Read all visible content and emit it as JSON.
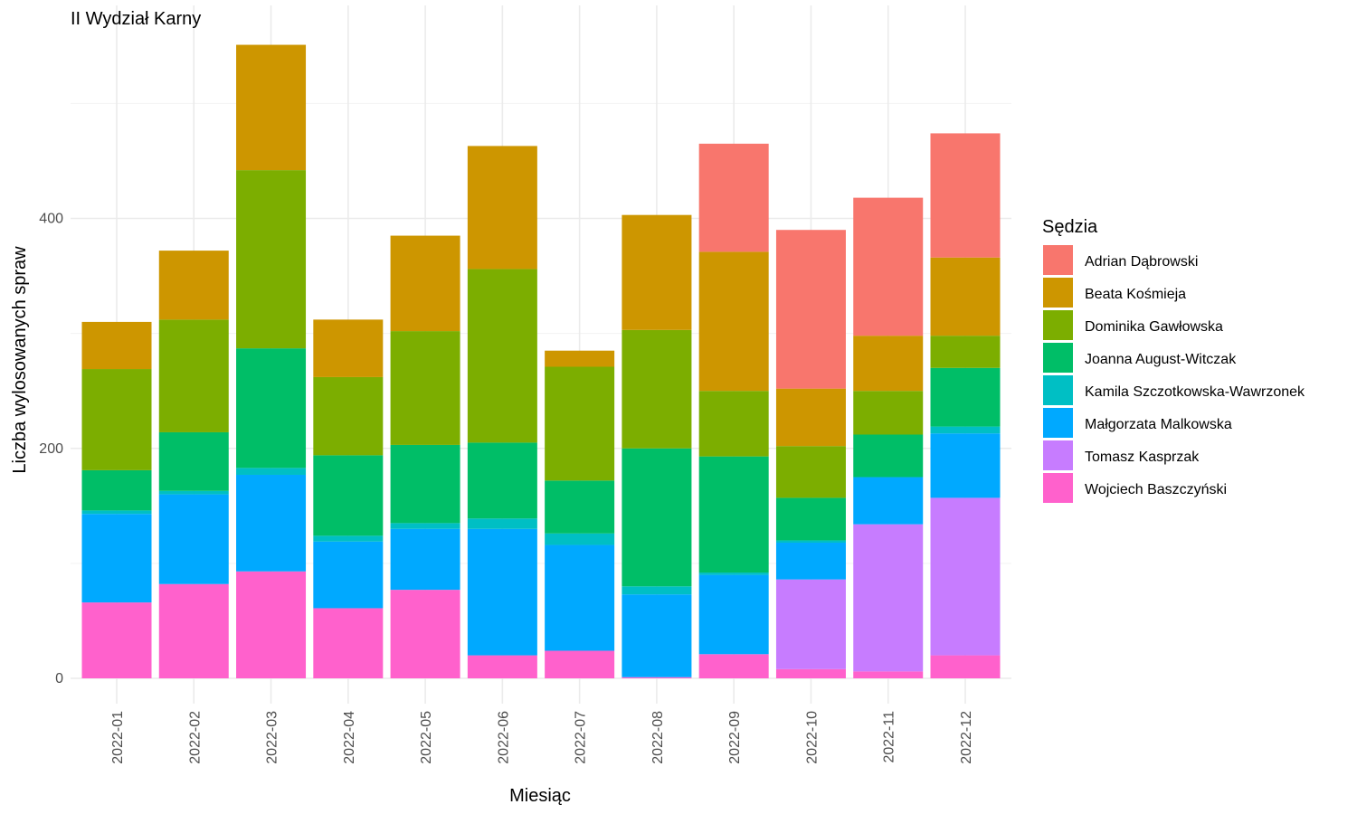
{
  "chart_data": {
    "type": "bar",
    "stacked": true,
    "title": "II Wydział Karny",
    "xlabel": "Miesiąc",
    "ylabel": "Liczba wylosowanych spraw",
    "ylim": [
      0,
      580
    ],
    "yticks": [
      0,
      200,
      400
    ],
    "grid": true,
    "legend_title": "Sędzia",
    "legend_position": "right",
    "categories": [
      "2022-01",
      "2022-02",
      "2022-03",
      "2022-04",
      "2022-05",
      "2022-06",
      "2022-07",
      "2022-08",
      "2022-09",
      "2022-10",
      "2022-11",
      "2022-12"
    ],
    "series": [
      {
        "name": "Adrian Dąbrowski",
        "color": "#F8766D",
        "values": [
          0,
          0,
          0,
          0,
          0,
          0,
          0,
          0,
          94,
          138,
          120,
          108
        ]
      },
      {
        "name": "Beata Kośmieja",
        "color": "#CD9600",
        "values": [
          41,
          60,
          109,
          50,
          83,
          107,
          14,
          100,
          121,
          50,
          48,
          68
        ]
      },
      {
        "name": "Dominika Gawłowska",
        "color": "#7CAE00",
        "values": [
          88,
          98,
          155,
          68,
          99,
          151,
          99,
          103,
          57,
          45,
          38,
          28
        ]
      },
      {
        "name": "Joanna August-Witczak",
        "color": "#00BE67",
        "values": [
          35,
          51,
          104,
          70,
          68,
          66,
          46,
          120,
          101,
          37,
          37,
          51
        ]
      },
      {
        "name": "Kamila Szczotkowska-Wawrzonek",
        "color": "#00BFC4",
        "values": [
          3,
          3,
          6,
          5,
          5,
          9,
          10,
          7,
          2,
          2,
          0,
          6
        ]
      },
      {
        "name": "Małgorzata Malkowska",
        "color": "#00A9FF",
        "values": [
          77,
          78,
          84,
          58,
          53,
          110,
          92,
          72,
          69,
          32,
          41,
          56
        ]
      },
      {
        "name": "Tomasz Kasprzak",
        "color": "#C77CFF",
        "values": [
          0,
          0,
          0,
          0,
          0,
          0,
          0,
          0,
          0,
          78,
          128,
          137
        ]
      },
      {
        "name": "Wojciech Baszczyński",
        "color": "#FF61CC",
        "values": [
          66,
          82,
          93,
          61,
          77,
          20,
          24,
          1,
          21,
          8,
          6,
          20
        ]
      }
    ]
  }
}
